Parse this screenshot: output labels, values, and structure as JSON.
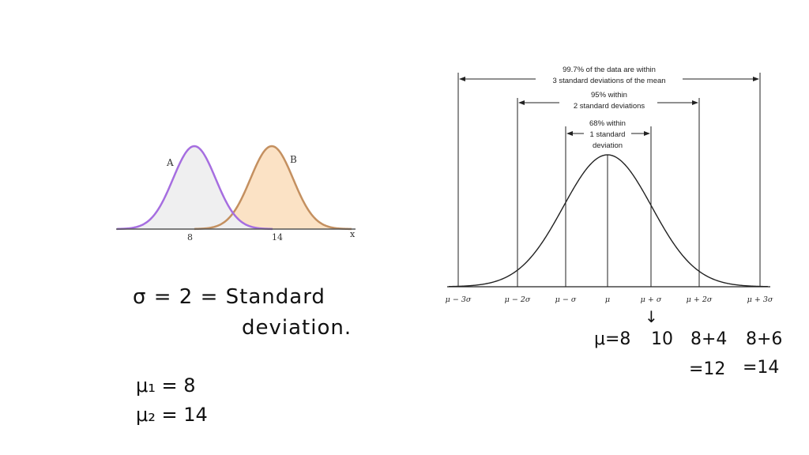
{
  "left_figure": {
    "curve_a_label": "A",
    "curve_b_label": "B",
    "tick_8": "8",
    "tick_14": "14",
    "axis_x_label": "x",
    "curve_a_color": "#a66ee0",
    "curve_a_fill": "#efeff0",
    "curve_b_color": "#c49060",
    "curve_b_fill": "#fbe2c5"
  },
  "right_figure": {
    "band_997_line1": "99.7% of the data are within",
    "band_997_line2": "3 standard deviations of the mean",
    "band_95_line1": "95% within",
    "band_95_line2": "2 standard deviations",
    "band_68_line1": "68% within",
    "band_68_line2": "1 standard",
    "band_68_line3": "deviation",
    "ticks": [
      "μ − 3σ",
      "μ − 2σ",
      "μ − σ",
      "μ",
      "μ + σ",
      "μ + 2σ",
      "μ + 3σ"
    ]
  },
  "handwriting": {
    "sigma_line": "σ = 2 = Standard",
    "deviation_word": "deviation.",
    "mu1": "μ₁ = 8",
    "mu2": "μ₂ = 14",
    "values_row": [
      "μ=8",
      "10",
      "8+4",
      "8+6"
    ],
    "values_row2": [
      "=12",
      "=14"
    ],
    "arrow": "↓"
  }
}
